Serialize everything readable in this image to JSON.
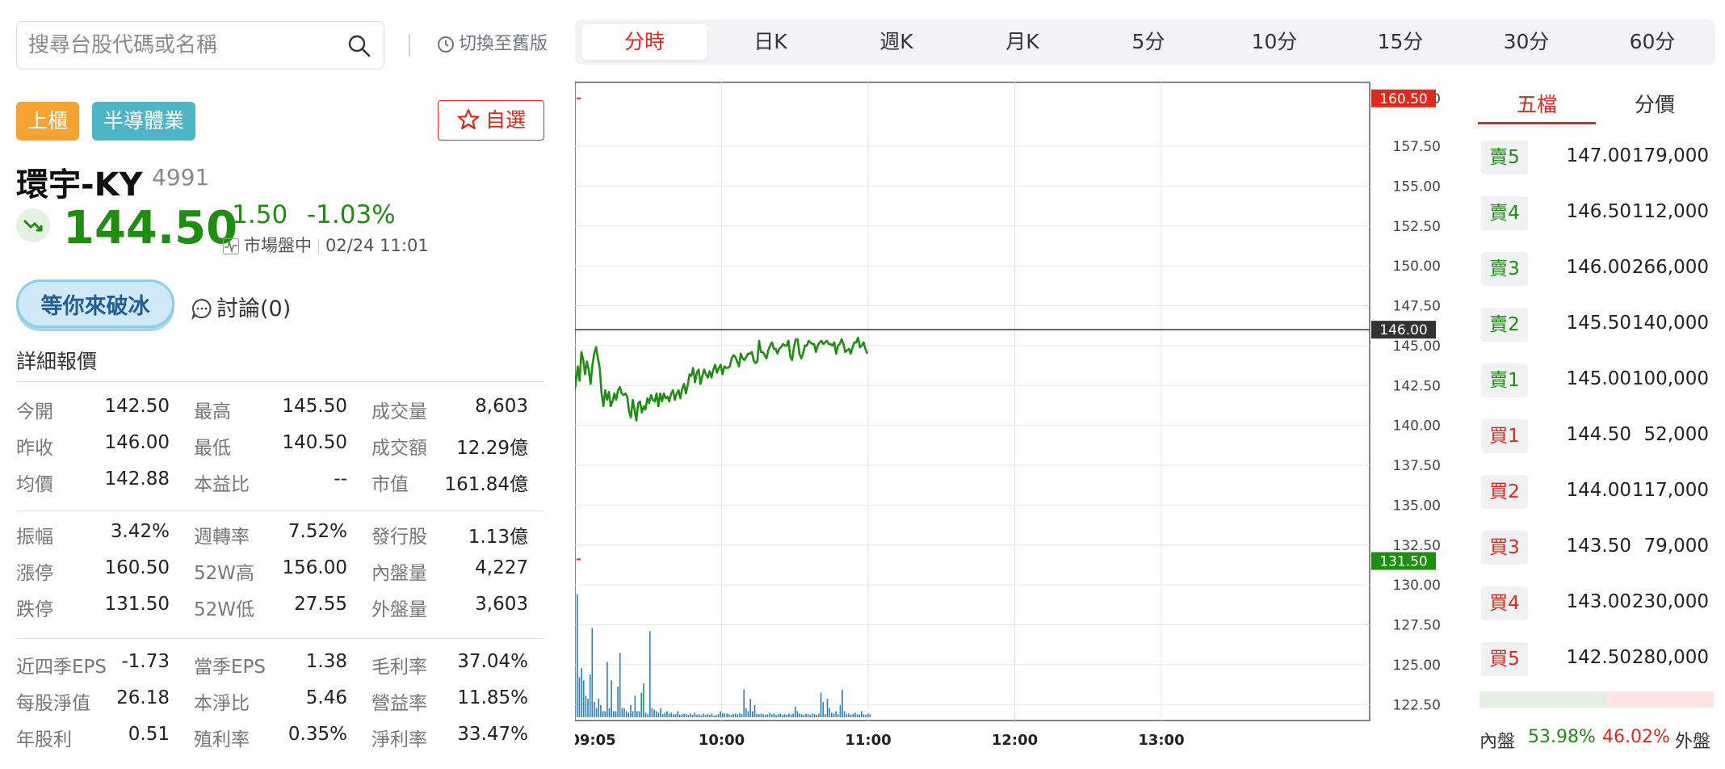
{
  "search": {
    "placeholder": "搜尋台股代碼或名稱"
  },
  "old_version_label": "切換至舊版",
  "period_tabs": [
    "分時",
    "日K",
    "週K",
    "月K",
    "5分",
    "10分",
    "15分",
    "30分",
    "60分"
  ],
  "active_period": "分時",
  "stock": {
    "market_tag": "上櫃",
    "industry_tag": "半導體業",
    "watchlist_label": "自選",
    "name": "環宇-KY",
    "code": "4991",
    "price": "144.50",
    "change": "-1.50",
    "change_pct": "-1.03%",
    "status": "市場盤中",
    "datetime": "02/24 11:01"
  },
  "community": {
    "badge": "等你來破冰",
    "discuss": "討論(0)"
  },
  "detail_title": "詳細報價",
  "details": [
    [
      [
        "今開",
        "142.50",
        ""
      ],
      [
        "最高",
        "145.50",
        ""
      ],
      [
        "成交量",
        "8,603",
        ""
      ]
    ],
    [
      [
        "昨收",
        "146.00",
        ""
      ],
      [
        "最低",
        "140.50",
        ""
      ],
      [
        "成交額",
        "12.29億",
        ""
      ]
    ],
    [
      [
        "均價",
        "142.88",
        ""
      ],
      [
        "本益比",
        "--",
        ""
      ],
      [
        "市值",
        "161.84億",
        ""
      ]
    ],
    [
      [
        "振幅",
        "3.42%",
        ""
      ],
      [
        "週轉率",
        "7.52%",
        ""
      ],
      [
        "發行股",
        "1.13億",
        ""
      ]
    ],
    [
      [
        "漲停",
        "160.50",
        "up"
      ],
      [
        "52W高",
        "156.00",
        "up"
      ],
      [
        "內盤量",
        "4,227",
        "down"
      ]
    ],
    [
      [
        "跌停",
        "131.50",
        "down"
      ],
      [
        "52W低",
        "27.55",
        "down"
      ],
      [
        "外盤量",
        "3,603",
        "up"
      ]
    ],
    [
      [
        "近四季EPS",
        "-1.73",
        ""
      ],
      [
        "當季EPS",
        "1.38",
        ""
      ],
      [
        "毛利率",
        "37.04%",
        ""
      ]
    ],
    [
      [
        "每股淨值",
        "26.18",
        ""
      ],
      [
        "本淨比",
        "5.46",
        ""
      ],
      [
        "營益率",
        "11.85%",
        ""
      ]
    ],
    [
      [
        "年股利",
        "0.51",
        ""
      ],
      [
        "殖利率",
        "0.35%",
        ""
      ],
      [
        "淨利率",
        "33.47%",
        ""
      ]
    ]
  ],
  "orderbook": {
    "tabs": [
      "五檔",
      "分價"
    ],
    "asks": [
      {
        "label": "賣5",
        "price": "147.00",
        "vol": "179,000"
      },
      {
        "label": "賣4",
        "price": "146.50",
        "vol": "112,000"
      },
      {
        "label": "賣3",
        "price": "146.00",
        "vol": "266,000"
      },
      {
        "label": "賣2",
        "price": "145.50",
        "vol": "140,000"
      },
      {
        "label": "賣1",
        "price": "145.00",
        "vol": "100,000"
      }
    ],
    "bids": [
      {
        "label": "買1",
        "price": "144.50",
        "vol": "52,000"
      },
      {
        "label": "買2",
        "price": "144.00",
        "vol": "117,000"
      },
      {
        "label": "買3",
        "price": "143.50",
        "vol": "79,000"
      },
      {
        "label": "買4",
        "price": "143.00",
        "vol": "230,000"
      },
      {
        "label": "買5",
        "price": "142.50",
        "vol": "280,000"
      }
    ],
    "inner_label": "內盤",
    "inner_pct": "53.98%",
    "outer_pct": "46.02%",
    "outer_label": "外盤",
    "inner_ratio": 0.5398
  },
  "colors": {
    "up": "#e0291d",
    "down": "#1f8c12",
    "ref": "#333333"
  },
  "chart_data": {
    "type": "line",
    "y_ticks": [
      "160.50",
      "157.50",
      "155.00",
      "152.50",
      "150.00",
      "147.50",
      "145.00",
      "142.50",
      "140.00",
      "137.50",
      "135.00",
      "132.50",
      "130.00",
      "127.50",
      "125.00",
      "122.50"
    ],
    "ylim": [
      121.5,
      161.5
    ],
    "limit_up": 160.5,
    "limit_down": 131.5,
    "reference": 146.0,
    "ref_label": "146.00",
    "limit_up_label": "160.50",
    "limit_down_label": "131.50",
    "x_ticks": [
      "09:05",
      "10:00",
      "11:00",
      "12:00",
      "13:00"
    ],
    "x_tick_minutes": [
      0,
      60,
      120,
      180,
      240
    ],
    "session_minutes": [
      0,
      270
    ],
    "price_series": [
      [
        0,
        142.3
      ],
      [
        3,
        143.7
      ],
      [
        5,
        142.8
      ],
      [
        7,
        144.6
      ],
      [
        9,
        144.1
      ],
      [
        11,
        143.2
      ],
      [
        13,
        144.0
      ],
      [
        15,
        143.5
      ],
      [
        17,
        142.6
      ],
      [
        19,
        143.8
      ],
      [
        21,
        144.5
      ],
      [
        23,
        144.9
      ],
      [
        25,
        144.2
      ],
      [
        27,
        143.6
      ],
      [
        29,
        142.0
      ],
      [
        31,
        141.2
      ],
      [
        33,
        142.2
      ],
      [
        35,
        141.6
      ],
      [
        37,
        142.1
      ],
      [
        39,
        141.2
      ],
      [
        41,
        141.5
      ],
      [
        43,
        142.0
      ],
      [
        45,
        141.6
      ],
      [
        47,
        142.2
      ],
      [
        49,
        142.4
      ],
      [
        51,
        142.0
      ],
      [
        53,
        141.9
      ],
      [
        55,
        142.0
      ],
      [
        57,
        141.8
      ],
      [
        59,
        140.9
      ],
      [
        61,
        140.5
      ],
      [
        63,
        141.6
      ],
      [
        65,
        141.0
      ],
      [
        67,
        140.3
      ],
      [
        69,
        141.4
      ],
      [
        71,
        141.5
      ],
      [
        73,
        140.8
      ],
      [
        75,
        141.2
      ],
      [
        77,
        141.0
      ],
      [
        79,
        141.7
      ],
      [
        81,
        141.4
      ],
      [
        83,
        141.9
      ],
      [
        85,
        141.6
      ],
      [
        87,
        141.5
      ],
      [
        89,
        142.0
      ],
      [
        91,
        141.2
      ],
      [
        93,
        142.0
      ],
      [
        95,
        141.5
      ],
      [
        97,
        142.0
      ],
      [
        99,
        141.7
      ],
      [
        101,
        141.8
      ],
      [
        103,
        141.5
      ],
      [
        105,
        142.0
      ],
      [
        107,
        142.2
      ],
      [
        109,
        141.6
      ],
      [
        111,
        142.0
      ],
      [
        113,
        142.2
      ],
      [
        115,
        141.7
      ],
      [
        117,
        142.3
      ],
      [
        119,
        142.6
      ],
      [
        121,
        142.0
      ],
      [
        123,
        142.5
      ],
      [
        125,
        143.2
      ],
      [
        127,
        143.1
      ],
      [
        129,
        143.6
      ],
      [
        131,
        142.7
      ],
      [
        133,
        143.3
      ],
      [
        135,
        143.5
      ],
      [
        137,
        142.6
      ],
      [
        139,
        143.1
      ],
      [
        141,
        143.5
      ],
      [
        143,
        143.2
      ],
      [
        145,
        143.0
      ],
      [
        147,
        143.4
      ],
      [
        149,
        143.0
      ],
      [
        151,
        143.5
      ],
      [
        153,
        143.8
      ],
      [
        155,
        143.3
      ],
      [
        157,
        143.6
      ],
      [
        159,
        143.8
      ],
      [
        161,
        143.2
      ],
      [
        163,
        143.7
      ],
      [
        165,
        143.6
      ],
      [
        167,
        143.6
      ],
      [
        169,
        143.7
      ],
      [
        171,
        144.2
      ],
      [
        173,
        144.4
      ],
      [
        175,
        144.3
      ],
      [
        177,
        144.0
      ],
      [
        179,
        143.7
      ],
      [
        181,
        144.5
      ],
      [
        183,
        144.2
      ],
      [
        185,
        144.1
      ],
      [
        187,
        144.3
      ],
      [
        189,
        144.5
      ],
      [
        191,
        144.5
      ],
      [
        193,
        144.6
      ],
      [
        195,
        144.1
      ],
      [
        197,
        143.9
      ],
      [
        199,
        144.0
      ],
      [
        201,
        145.3
      ],
      [
        203,
        144.6
      ],
      [
        205,
        144.6
      ],
      [
        207,
        144.4
      ],
      [
        209,
        144.2
      ],
      [
        211,
        144.7
      ],
      [
        213,
        145.0
      ],
      [
        215,
        145.2
      ],
      [
        217,
        144.8
      ],
      [
        219,
        144.8
      ],
      [
        221,
        144.5
      ],
      [
        223,
        144.8
      ],
      [
        225,
        144.9
      ],
      [
        227,
        145.1
      ],
      [
        229,
        145.0
      ],
      [
        231,
        145.0
      ],
      [
        233,
        145.3
      ],
      [
        235,
        144.3
      ],
      [
        237,
        144.1
      ],
      [
        239,
        144.9
      ],
      [
        241,
        145.4
      ],
      [
        243,
        145.4
      ],
      [
        245,
        144.5
      ],
      [
        247,
        144.2
      ],
      [
        249,
        144.5
      ],
      [
        251,
        145.0
      ],
      [
        253,
        145.0
      ],
      [
        255,
        145.3
      ],
      [
        257,
        145.2
      ],
      [
        259,
        145.1
      ],
      [
        261,
        145.1
      ],
      [
        263,
        144.6
      ],
      [
        265,
        145.0
      ],
      [
        267,
        145.2
      ],
      [
        269,
        145.3
      ],
      [
        271,
        145.1
      ],
      [
        273,
        145.2
      ],
      [
        275,
        145.3
      ],
      [
        277,
        145.1
      ],
      [
        279,
        145.1
      ],
      [
        281,
        145.0
      ],
      [
        283,
        145.2
      ],
      [
        285,
        144.5
      ],
      [
        287,
        145.0
      ],
      [
        289,
        145.1
      ],
      [
        291,
        145.4
      ],
      [
        293,
        145.1
      ],
      [
        295,
        144.6
      ],
      [
        297,
        144.7
      ],
      [
        299,
        144.8
      ],
      [
        301,
        144.5
      ],
      [
        303,
        144.9
      ],
      [
        305,
        145.2
      ],
      [
        307,
        145.2
      ],
      [
        309,
        145.5
      ],
      [
        311,
        144.9
      ],
      [
        313,
        145.0
      ],
      [
        315,
        145.2
      ],
      [
        317,
        144.8
      ],
      [
        319,
        144.5
      ]
    ],
    "price_series_minutes_scale": 0.375,
    "volume_ylim": [
      0,
      420
    ],
    "volume_series": [
      [
        0,
        400
      ],
      [
        1,
        130
      ],
      [
        2,
        160
      ],
      [
        3,
        120
      ],
      [
        4,
        70
      ],
      [
        5,
        60
      ],
      [
        6,
        140
      ],
      [
        7,
        290
      ],
      [
        8,
        50
      ],
      [
        9,
        30
      ],
      [
        10,
        60
      ],
      [
        11,
        40
      ],
      [
        12,
        20
      ],
      [
        13,
        20
      ],
      [
        14,
        180
      ],
      [
        15,
        30
      ],
      [
        16,
        120
      ],
      [
        17,
        20
      ],
      [
        18,
        20
      ],
      [
        19,
        100
      ],
      [
        20,
        210
      ],
      [
        21,
        30
      ],
      [
        22,
        30
      ],
      [
        23,
        20
      ],
      [
        24,
        15
      ],
      [
        25,
        40
      ],
      [
        26,
        20
      ],
      [
        27,
        70
      ],
      [
        28,
        20
      ],
      [
        29,
        20
      ],
      [
        30,
        80
      ],
      [
        31,
        110
      ],
      [
        32,
        15
      ],
      [
        33,
        10
      ],
      [
        34,
        280
      ],
      [
        35,
        30
      ],
      [
        36,
        25
      ],
      [
        37,
        20
      ],
      [
        38,
        15
      ],
      [
        39,
        30
      ],
      [
        40,
        10
      ],
      [
        41,
        15
      ],
      [
        42,
        20
      ],
      [
        43,
        12
      ],
      [
        44,
        15
      ],
      [
        45,
        10
      ],
      [
        46,
        10
      ],
      [
        47,
        20
      ],
      [
        48,
        8
      ],
      [
        49,
        10
      ],
      [
        50,
        12
      ],
      [
        51,
        10
      ],
      [
        52,
        8
      ],
      [
        53,
        12
      ],
      [
        54,
        8
      ],
      [
        55,
        15
      ],
      [
        56,
        8
      ],
      [
        57,
        10
      ],
      [
        58,
        6
      ],
      [
        59,
        12
      ],
      [
        60,
        8
      ],
      [
        61,
        10
      ],
      [
        62,
        8
      ],
      [
        63,
        12
      ],
      [
        64,
        6
      ],
      [
        65,
        8
      ],
      [
        66,
        10
      ],
      [
        67,
        20
      ],
      [
        68,
        14
      ],
      [
        69,
        12
      ],
      [
        70,
        12
      ],
      [
        71,
        10
      ],
      [
        72,
        8
      ],
      [
        73,
        10
      ],
      [
        74,
        12
      ],
      [
        75,
        10
      ],
      [
        76,
        14
      ],
      [
        77,
        10
      ],
      [
        78,
        90
      ],
      [
        79,
        30
      ],
      [
        80,
        20
      ],
      [
        81,
        60
      ],
      [
        82,
        20
      ],
      [
        83,
        40
      ],
      [
        84,
        12
      ],
      [
        85,
        10
      ],
      [
        86,
        12
      ],
      [
        87,
        10
      ],
      [
        88,
        8
      ],
      [
        89,
        10
      ],
      [
        90,
        15
      ],
      [
        91,
        10
      ],
      [
        92,
        12
      ],
      [
        93,
        8
      ],
      [
        94,
        10
      ],
      [
        95,
        12
      ],
      [
        96,
        8
      ],
      [
        97,
        10
      ],
      [
        98,
        8
      ],
      [
        99,
        12
      ],
      [
        100,
        10
      ],
      [
        101,
        12
      ],
      [
        102,
        35
      ],
      [
        103,
        20
      ],
      [
        104,
        12
      ],
      [
        105,
        10
      ],
      [
        106,
        8
      ],
      [
        107,
        12
      ],
      [
        108,
        10
      ],
      [
        109,
        8
      ],
      [
        110,
        12
      ],
      [
        111,
        10
      ],
      [
        112,
        8
      ],
      [
        113,
        12
      ],
      [
        114,
        80
      ],
      [
        115,
        50
      ],
      [
        116,
        10
      ],
      [
        117,
        60
      ],
      [
        118,
        30
      ],
      [
        119,
        15
      ],
      [
        120,
        12
      ],
      [
        121,
        20
      ],
      [
        122,
        10
      ],
      [
        123,
        40
      ],
      [
        124,
        90
      ],
      [
        125,
        20
      ],
      [
        126,
        10
      ],
      [
        127,
        12
      ],
      [
        128,
        8
      ],
      [
        129,
        10
      ],
      [
        130,
        15
      ],
      [
        131,
        10
      ],
      [
        132,
        8
      ],
      [
        133,
        20
      ],
      [
        134,
        10
      ],
      [
        135,
        8
      ],
      [
        136,
        12
      ],
      [
        137,
        10
      ]
    ],
    "volume_bar_step_minutes": 0.875
  }
}
